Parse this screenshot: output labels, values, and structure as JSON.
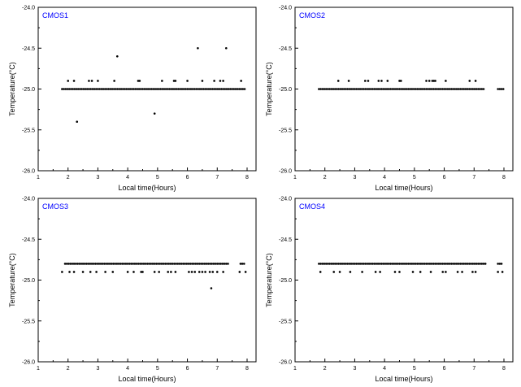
{
  "chart_data": [
    {
      "type": "scatter",
      "title": "CMOS1",
      "xlabel": "Local time(Hours)",
      "ylabel": "Temperature(°C)",
      "xlim": [
        1,
        8.3
      ],
      "ylim": [
        -26.0,
        -24.0
      ],
      "xticks": [
        "1",
        "2",
        "3",
        "4",
        "5",
        "6",
        "7",
        "8"
      ],
      "yticks": [
        "-24.0",
        "-24.5",
        "-25.0",
        "-25.5",
        "-26.0"
      ],
      "baseline": {
        "y": -25.0,
        "x_start": 1.8,
        "x_end": 7.95,
        "step": 0.06
      },
      "upper": {
        "y": -24.9,
        "x": [
          2.0,
          2.2,
          2.7,
          2.8,
          3.0,
          3.55,
          4.35,
          4.4,
          5.15,
          5.55,
          5.6,
          6.0,
          6.5,
          6.9,
          7.1,
          7.2,
          7.8
        ]
      },
      "gaps": [],
      "outliers": [
        [
          2.3,
          -25.4
        ],
        [
          3.65,
          -24.6
        ],
        [
          4.9,
          -25.3
        ],
        [
          6.35,
          -24.5
        ],
        [
          7.3,
          -24.5
        ]
      ],
      "title_color": "#0000ff"
    },
    {
      "type": "scatter",
      "title": "CMOS2",
      "xlabel": "Local time(Hours)",
      "ylabel": "Temperature(°C)",
      "xlim": [
        1,
        8.3
      ],
      "ylim": [
        -26.0,
        -24.0
      ],
      "xticks": [
        "1",
        "2",
        "3",
        "4",
        "5",
        "6",
        "7",
        "8"
      ],
      "yticks": [
        "-24.0",
        "-24.5",
        "-25.0",
        "-25.5",
        "-26.0"
      ],
      "baseline": {
        "y": -25.0,
        "x_start": 1.8,
        "x_end": 8.0,
        "step": 0.06
      },
      "upper": {
        "y": -24.9,
        "x": [
          2.45,
          2.8,
          3.35,
          3.45,
          3.8,
          3.9,
          4.1,
          4.5,
          4.55,
          5.4,
          5.5,
          5.6,
          5.65,
          5.7,
          6.05,
          6.85,
          7.05
        ]
      },
      "gaps": [
        [
          7.35,
          7.75
        ]
      ],
      "outliers": [],
      "title_color": "#0000ff"
    },
    {
      "type": "scatter",
      "title": "CMOS3",
      "xlabel": "Local time(Hours)",
      "ylabel": "Temperature(°C)",
      "xlim": [
        1,
        8.3
      ],
      "ylim": [
        -26.0,
        -24.0
      ],
      "xticks": [
        "1",
        "2",
        "3",
        "4",
        "5",
        "6",
        "7",
        "8"
      ],
      "yticks": [
        "-24.0",
        "-24.5",
        "-25.0",
        "-25.5",
        "-26.0"
      ],
      "baseline": {
        "y": -24.8,
        "x_start": 1.9,
        "x_end": 7.95,
        "step": 0.06
      },
      "upper": {
        "y": -24.9,
        "x": [
          1.8,
          2.05,
          2.2,
          2.5,
          2.75,
          2.95,
          3.25,
          3.5,
          4.0,
          4.2,
          4.45,
          4.5,
          4.9,
          5.05,
          5.35,
          5.45,
          5.6,
          6.05,
          6.15,
          6.25,
          6.4,
          6.5,
          6.6,
          6.75,
          6.85,
          7.0,
          7.2,
          7.75,
          7.95
        ]
      },
      "gaps": [
        [
          7.4,
          7.75
        ]
      ],
      "outliers": [
        [
          6.8,
          -25.1
        ]
      ],
      "title_color": "#0000ff"
    },
    {
      "type": "scatter",
      "title": "CMOS4",
      "xlabel": "Local time(Hours)",
      "ylabel": "Temperature(°C)",
      "xlim": [
        1,
        8.3
      ],
      "ylim": [
        -26.0,
        -24.0
      ],
      "xticks": [
        "1",
        "2",
        "3",
        "4",
        "5",
        "6",
        "7",
        "8"
      ],
      "yticks": [
        "-24.0",
        "-24.5",
        "-25.0",
        "-25.5",
        "-26.0"
      ],
      "baseline": {
        "y": -24.8,
        "x_start": 1.8,
        "x_end": 7.95,
        "step": 0.06
      },
      "upper": {
        "y": -24.9,
        "x": [
          1.85,
          2.3,
          2.5,
          2.85,
          3.25,
          3.7,
          3.85,
          4.35,
          4.5,
          4.95,
          5.2,
          5.55,
          5.95,
          6.05,
          6.45,
          6.6,
          6.95,
          7.05,
          7.8,
          7.95
        ]
      },
      "gaps": [
        [
          7.4,
          7.75
        ]
      ],
      "outliers": [],
      "title_color": "#0000ff"
    }
  ]
}
